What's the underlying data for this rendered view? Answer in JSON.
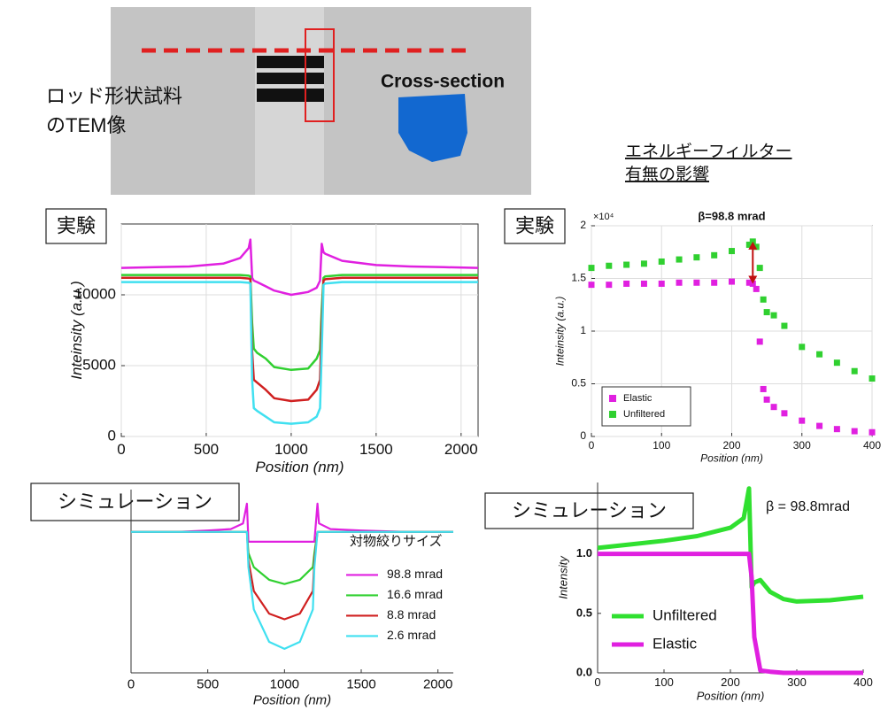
{
  "image": {
    "caption": [
      "ロッド形状試料",
      "のTEM像"
    ],
    "label": "Cross-section"
  },
  "heading": [
    "エネルギーフィルター",
    "有無の影響"
  ],
  "chart_data": [
    {
      "type": "line",
      "panel_label": "実験",
      "x_label": "Position (nm)",
      "y_label": "Inteinsity (a.u.)",
      "xlim": [
        0,
        2100
      ],
      "xticks": [
        0,
        500,
        1000,
        1500,
        2000
      ],
      "ylim": [
        0,
        15000
      ],
      "yticks": [
        0,
        5000,
        10000
      ],
      "grid": true,
      "x": [
        0,
        200,
        400,
        600,
        700,
        750,
        760,
        770,
        780,
        800,
        850,
        900,
        1000,
        1100,
        1150,
        1170,
        1180,
        1190,
        1200,
        1300,
        1500,
        1700,
        1900,
        2100
      ],
      "series": [
        {
          "color": "#e020e0",
          "values": [
            11900,
            11950,
            12000,
            12200,
            12600,
            13300,
            13900,
            11200,
            11000,
            10900,
            10600,
            10300,
            10000,
            10200,
            10500,
            11000,
            13600,
            13000,
            12900,
            12400,
            12100,
            12000,
            11950,
            11900
          ]
        },
        {
          "color": "#30d030",
          "values": [
            11400,
            11400,
            11400,
            11400,
            11400,
            11350,
            11300,
            8000,
            6200,
            5900,
            5500,
            4900,
            4700,
            4800,
            5500,
            6100,
            9000,
            11200,
            11300,
            11400,
            11400,
            11400,
            11400,
            11400
          ]
        },
        {
          "color": "#d02020",
          "values": [
            11200,
            11200,
            11200,
            11200,
            11200,
            11150,
            11100,
            6000,
            4000,
            3800,
            3300,
            2700,
            2500,
            2600,
            3300,
            4000,
            8000,
            11000,
            11100,
            11200,
            11200,
            11200,
            11200,
            11200
          ]
        },
        {
          "color": "#40e0f0",
          "values": [
            10900,
            10900,
            10900,
            10900,
            10900,
            10850,
            10800,
            4000,
            2000,
            1800,
            1400,
            1000,
            900,
            1000,
            1400,
            2000,
            6000,
            10700,
            10800,
            10900,
            10900,
            10900,
            10900,
            10900
          ]
        }
      ]
    },
    {
      "type": "line",
      "marker": "square",
      "panel_label": "実験",
      "title": "β=98.8 mrad",
      "y_multiplier": "×10⁴",
      "x_label": "Position (nm)",
      "y_label": "Inteinsity (a.u.)",
      "xlim": [
        0,
        400
      ],
      "xticks": [
        0,
        100,
        200,
        300,
        400
      ],
      "ylim": [
        0,
        2
      ],
      "yticks": [
        0,
        0.5,
        1,
        1.5,
        2
      ],
      "grid": true,
      "legend": "lower left",
      "x": [
        0,
        25,
        50,
        75,
        100,
        125,
        150,
        175,
        200,
        225,
        230,
        235,
        240,
        245,
        250,
        260,
        275,
        300,
        325,
        350,
        375,
        400
      ],
      "series": [
        {
          "name": "Elastic",
          "color": "#e020e0",
          "values": [
            1.44,
            1.44,
            1.45,
            1.45,
            1.45,
            1.46,
            1.46,
            1.46,
            1.47,
            1.46,
            1.45,
            1.4,
            0.9,
            0.45,
            0.35,
            0.28,
            0.22,
            0.15,
            0.1,
            0.07,
            0.05,
            0.04
          ]
        },
        {
          "name": "Unfiltered",
          "color": "#30d030",
          "values": [
            1.6,
            1.62,
            1.63,
            1.64,
            1.66,
            1.68,
            1.7,
            1.72,
            1.76,
            1.82,
            1.85,
            1.8,
            1.6,
            1.3,
            1.18,
            1.15,
            1.05,
            0.85,
            0.78,
            0.7,
            0.62,
            0.55
          ]
        }
      ]
    },
    {
      "type": "line",
      "panel_label": "シミュレーション",
      "x_label": "Position (nm)",
      "legend_title": "対物絞りサイズ",
      "legend": "right",
      "xlim": [
        0,
        2100
      ],
      "xticks": [
        0,
        500,
        1000,
        1500,
        2000
      ],
      "ylim": [
        0,
        1.3
      ],
      "grid": false,
      "x": [
        0,
        300,
        500,
        650,
        730,
        755,
        765,
        800,
        900,
        1000,
        1100,
        1185,
        1195,
        1215,
        1225,
        1300,
        1500,
        1800,
        2100
      ],
      "series": [
        {
          "name": "98.8 mrad",
          "color": "#e020e0",
          "values": [
            1.0,
            1.0,
            1.01,
            1.02,
            1.06,
            1.2,
            0.93,
            0.93,
            0.93,
            0.93,
            0.93,
            0.93,
            0.93,
            1.2,
            1.06,
            1.02,
            1.01,
            1.0,
            1.0
          ]
        },
        {
          "name": "16.6 mrad",
          "color": "#30d030",
          "values": [
            1,
            1,
            1,
            1,
            1,
            1,
            0.85,
            0.75,
            0.66,
            0.63,
            0.66,
            0.75,
            0.85,
            1,
            1,
            1,
            1,
            1,
            1
          ]
        },
        {
          "name": "8.8 mrad",
          "color": "#d02020",
          "values": [
            1,
            1,
            1,
            1,
            1,
            1,
            0.8,
            0.58,
            0.42,
            0.38,
            0.42,
            0.58,
            0.8,
            1,
            1,
            1,
            1,
            1,
            1
          ]
        },
        {
          "name": "2.6 mrad",
          "color": "#40e0f0",
          "values": [
            1,
            1,
            1,
            1,
            1,
            1,
            0.75,
            0.45,
            0.22,
            0.17,
            0.22,
            0.45,
            0.75,
            1,
            1,
            1,
            1,
            1,
            1
          ]
        }
      ]
    },
    {
      "type": "line",
      "panel_label": "シミュレーション",
      "annotation": "β = 98.8mrad",
      "x_label": "Position (nm)",
      "y_label": "Intensity",
      "legend": "lower left",
      "xlim": [
        0,
        400
      ],
      "xticks": [
        0,
        100,
        200,
        300,
        400
      ],
      "ylim": [
        0,
        1.6
      ],
      "yticks": [
        {
          "value": 0,
          "label": "0.0"
        },
        0.5,
        {
          "value": 1,
          "label": "1.0"
        }
      ],
      "grid": false,
      "x": [
        0,
        50,
        100,
        150,
        200,
        220,
        228,
        232,
        236,
        245,
        260,
        280,
        300,
        350,
        400
      ],
      "series": [
        {
          "name": "Unfiltered",
          "color": "#30e030",
          "values": [
            1.05,
            1.08,
            1.11,
            1.15,
            1.22,
            1.3,
            1.55,
            0.72,
            0.76,
            0.78,
            0.68,
            0.62,
            0.6,
            0.61,
            0.64
          ]
        },
        {
          "name": "Elastic",
          "color": "#e020e0",
          "values": [
            1.0,
            1.0,
            1.0,
            1.0,
            1.0,
            1.0,
            1.0,
            0.8,
            0.3,
            0.02,
            0.01,
            0,
            0,
            0,
            0
          ]
        }
      ]
    }
  ]
}
